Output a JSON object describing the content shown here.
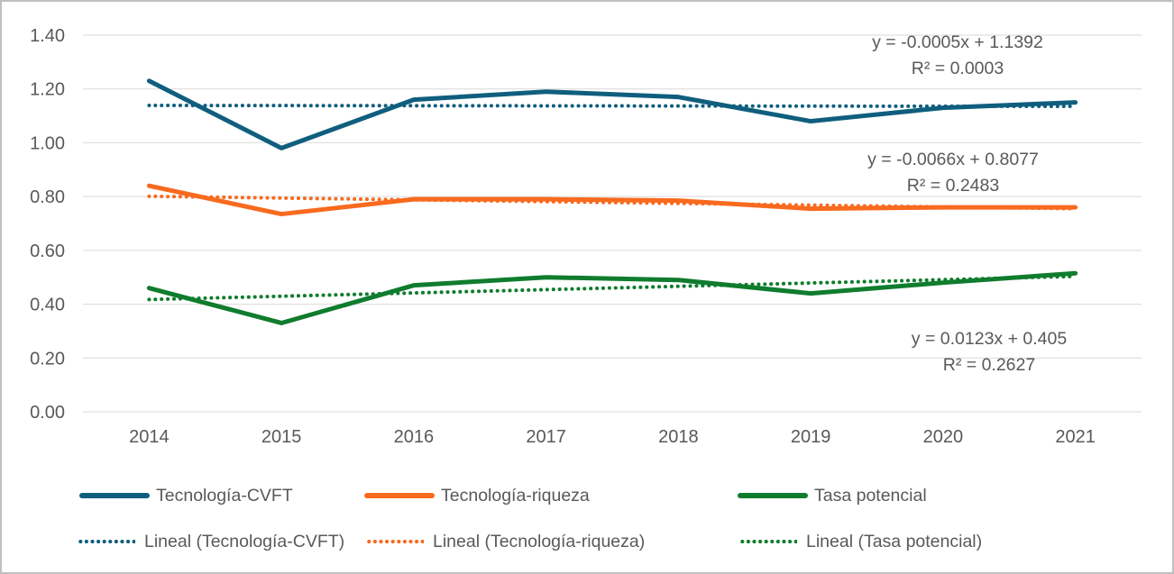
{
  "colors": {
    "grid": "#D9D9D9",
    "axis_text": "#595959",
    "annotation_text": "#595959",
    "border": "#BFBFBF",
    "background": "#FFFFFF"
  },
  "chart_data": {
    "type": "line",
    "title": "",
    "xlabel": "",
    "ylabel": "",
    "categories": [
      "2014",
      "2015",
      "2016",
      "2017",
      "2018",
      "2019",
      "2020",
      "2021"
    ],
    "y_axis": {
      "min": 0,
      "max": 1.4,
      "step": 0.2,
      "tick_labels": [
        "0.00",
        "0.20",
        "0.40",
        "0.60",
        "0.80",
        "1.00",
        "1.20",
        "1.40"
      ]
    },
    "grid": true,
    "legend_position": "bottom",
    "series": [
      {
        "name": "Tecnología-CVFT",
        "color": "#105E7E",
        "values": [
          1.23,
          0.98,
          1.16,
          1.19,
          1.17,
          1.08,
          1.13,
          1.15
        ]
      },
      {
        "name": "Tecnología-riqueza",
        "color": "#F86A1E",
        "values": [
          0.84,
          0.735,
          0.79,
          0.79,
          0.785,
          0.755,
          0.76,
          0.76
        ]
      },
      {
        "name": "Tasa potencial",
        "color": "#107C2E",
        "values": [
          0.46,
          0.33,
          0.47,
          0.5,
          0.49,
          0.44,
          0.48,
          0.515
        ]
      }
    ],
    "trendlines": [
      {
        "name": "Lineal (Tecnología-CVFT)",
        "color": "#105E7E",
        "slope": -0.0005,
        "intercept": 1.1392,
        "equation": "y = -0.0005x + 1.1392",
        "r2": "R² = 0.0003"
      },
      {
        "name": "Lineal (Tecnología-riqueza)",
        "color": "#F86A1E",
        "slope": -0.0066,
        "intercept": 0.8077,
        "equation": "y = -0.0066x + 0.8077",
        "r2": "R² = 0.2483"
      },
      {
        "name": "Lineal (Tasa potencial)",
        "color": "#107C2E",
        "slope": 0.0123,
        "intercept": 0.405,
        "equation": "y = 0.0123x + 0.405",
        "r2": "R² = 0.2627"
      }
    ]
  }
}
